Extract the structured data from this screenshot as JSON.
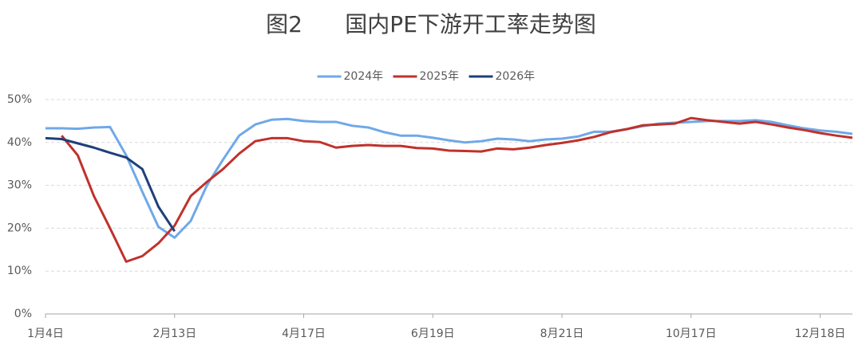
{
  "chart_data": {
    "type": "line",
    "title": "图2      国内PE下游开工率走势图",
    "categories": [
      "1月4日",
      null,
      null,
      null,
      null,
      null,
      null,
      null,
      "2月13日",
      null,
      null,
      null,
      null,
      null,
      null,
      null,
      "4月17日",
      null,
      null,
      null,
      null,
      null,
      null,
      null,
      "6月19日",
      null,
      null,
      null,
      null,
      null,
      null,
      null,
      "8月21日",
      null,
      null,
      null,
      null,
      null,
      null,
      null,
      "10月17日",
      null,
      null,
      null,
      null,
      null,
      null,
      null,
      "12月18日",
      null,
      null
    ],
    "series": [
      {
        "name": "2024年",
        "color": "#6fa8e8",
        "values": [
          43.3,
          43.3,
          43.2,
          43.5,
          43.6,
          37,
          28.5,
          20.3,
          17.8,
          21.7,
          30,
          36,
          41.6,
          44.2,
          45.3,
          45.5,
          45,
          44.8,
          44.8,
          43.9,
          43.5,
          42.4,
          41.6,
          41.6,
          41.1,
          40.5,
          40,
          40.3,
          40.9,
          40.7,
          40.3,
          40.7,
          40.9,
          41.4,
          42.5,
          42.5,
          43.1,
          43.8,
          44.4,
          44.6,
          44.8,
          45,
          45,
          45,
          45.2,
          44.8,
          44,
          43.3,
          42.8,
          42.5,
          42
        ]
      },
      {
        "name": "2025年",
        "color": "#c0312b",
        "values": [
          null,
          41.6,
          37,
          27.5,
          20,
          12.2,
          13.5,
          16.5,
          20.6,
          27.5,
          30.8,
          33.8,
          37.4,
          40.3,
          41,
          41,
          40.3,
          40.1,
          38.8,
          39.2,
          39.4,
          39.2,
          39.2,
          38.7,
          38.6,
          38.1,
          38,
          37.9,
          38.6,
          38.4,
          38.8,
          39.4,
          39.9,
          40.5,
          41.3,
          42.4,
          43.1,
          44,
          44.2,
          44.4,
          45.7,
          45.2,
          44.8,
          44.4,
          44.8,
          44.2,
          43.5,
          42.9,
          42.2,
          41.6,
          41.1
        ]
      },
      {
        "name": "2026年",
        "color": "#1f3f7a",
        "values": [
          41,
          40.8,
          39.8,
          38.8,
          37.6,
          36.5,
          33.8,
          25,
          19.3,
          null,
          null,
          null,
          null,
          null,
          null,
          null,
          null,
          null,
          null,
          null,
          null,
          null,
          null,
          null,
          null,
          null,
          null,
          null,
          null,
          null,
          null,
          null,
          null,
          null,
          null,
          null,
          null,
          null,
          null,
          null,
          null,
          null,
          null,
          null,
          null,
          null,
          null,
          null,
          null,
          null,
          null
        ]
      }
    ],
    "ylim": [
      0,
      50
    ],
    "yticks": [
      {
        "value": 0,
        "label": "0%"
      },
      {
        "value": 10,
        "label": "10%"
      },
      {
        "value": 20,
        "label": "20%"
      },
      {
        "value": 30,
        "label": "30%"
      },
      {
        "value": 40,
        "label": "40%"
      },
      {
        "value": 50,
        "label": "50%"
      }
    ],
    "grid": true
  }
}
